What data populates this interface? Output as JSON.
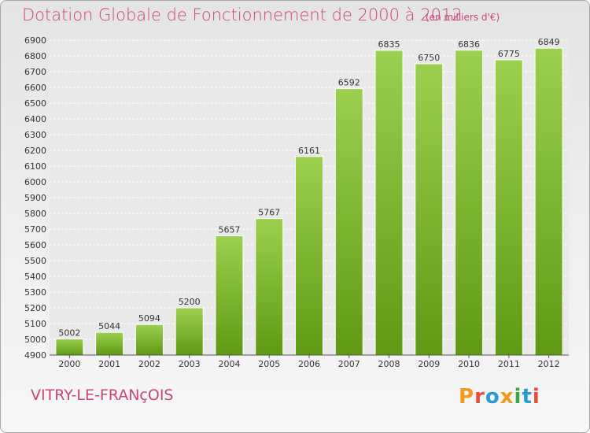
{
  "header": {
    "title": "Dotation Globale de Fonctionnement de 2000 à 2012",
    "unit": "(en milliers d'€)"
  },
  "footer": {
    "commune": "VITRY-LE-FRANçOIS",
    "brand": "Proxiti"
  },
  "colors": {
    "title": "#cc4477",
    "bar_top": "#9bd04e",
    "bar_bottom": "#5f9a14",
    "brand_letters": [
      "#f39a1e",
      "#e94c3d",
      "#2a9ad6",
      "#f39a1e",
      "#3aa34a",
      "#2a9ad6",
      "#e94c3d"
    ]
  },
  "chart_data": {
    "type": "bar",
    "categories": [
      "2000",
      "2001",
      "2002",
      "2003",
      "2004",
      "2005",
      "2006",
      "2007",
      "2008",
      "2009",
      "2010",
      "2011",
      "2012"
    ],
    "values": [
      5002,
      5044,
      5094,
      5200,
      5657,
      5767,
      6161,
      6592,
      6835,
      6750,
      6836,
      6775,
      6849
    ],
    "title": "Dotation Globale de Fonctionnement de 2000 à 2012",
    "xlabel": "",
    "ylabel": "",
    "ylim": [
      4900,
      6900
    ],
    "ytick_step": 100,
    "grid": true,
    "data_labels": true
  }
}
